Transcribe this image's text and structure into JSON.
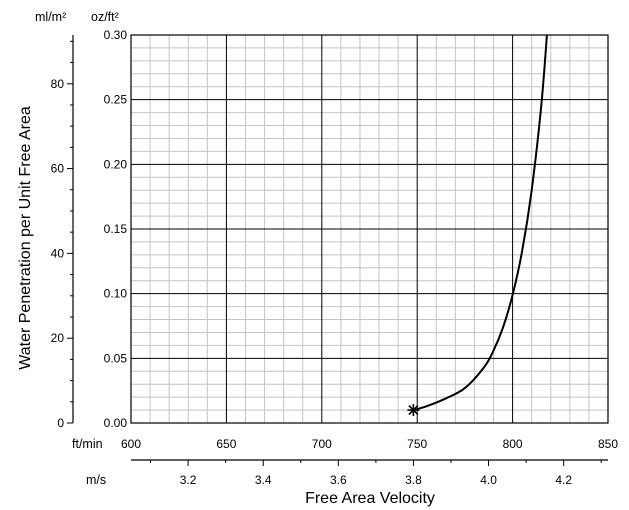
{
  "chart_data": {
    "type": "line",
    "title": "",
    "xlabel": "Free Area Velocity",
    "ylabel": "Water Penetration per Unit Free Area",
    "x_axis_primary": {
      "unit": "ft/min",
      "range": [
        600,
        850
      ],
      "major_ticks": [
        600,
        650,
        700,
        750,
        800,
        850
      ],
      "tick_labels": [
        "600",
        "650",
        "700",
        "750",
        "800",
        "850"
      ]
    },
    "x_axis_secondary": {
      "unit": "m/s",
      "range": [
        3.048,
        4.318
      ],
      "major_ticks": [
        3.2,
        3.4,
        3.6,
        3.8,
        4.0,
        4.2
      ],
      "tick_labels": [
        "3.2",
        "3.4",
        "3.6",
        "3.8",
        "4.0",
        "4.2"
      ]
    },
    "y_axis_primary": {
      "unit": "oz/ft²",
      "range": [
        0,
        0.3
      ],
      "major_ticks": [
        0,
        0.05,
        0.1,
        0.15,
        0.2,
        0.25,
        0.3
      ],
      "tick_labels": [
        "0.00",
        "0.05",
        "0.10",
        "0.15",
        "0.20",
        "0.25",
        "0.30"
      ]
    },
    "y_axis_secondary": {
      "unit": "ml/m²",
      "range": [
        0,
        91.5
      ],
      "major_ticks": [
        0,
        20,
        40,
        60,
        80
      ],
      "tick_labels": [
        "0",
        "20",
        "40",
        "60",
        "80"
      ]
    },
    "grid": true,
    "series": [
      {
        "x": [
          748,
          755,
          765,
          775,
          785,
          790,
          795,
          800,
          805,
          810,
          815,
          818
        ],
        "y": [
          0.01,
          0.013,
          0.019,
          0.027,
          0.043,
          0.056,
          0.074,
          0.099,
          0.133,
          0.18,
          0.245,
          0.3
        ]
      }
    ],
    "marker_point": {
      "x": 748,
      "y": 0.01,
      "symbol": "asterisk"
    }
  }
}
